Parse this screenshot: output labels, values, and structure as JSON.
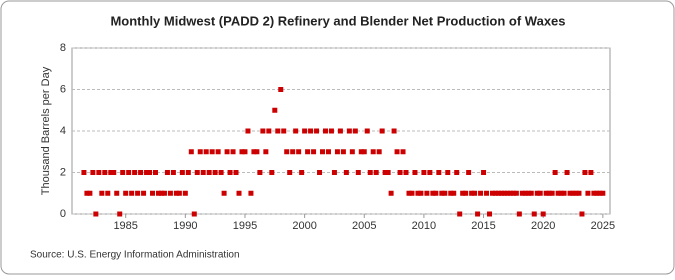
{
  "chart_data": {
    "type": "scatter",
    "title": "Monthly Midwest (PADD 2) Refinery and Blender Net Production of Waxes",
    "y_label": "Thousand Barrels per Day",
    "source": "Source: U.S. Energy Information Administration",
    "color": "#cc0000",
    "xlim": [
      1980.5,
      2025.6
    ],
    "xticks": [
      1985,
      1990,
      1995,
      2000,
      2005,
      2010,
      2015,
      2020,
      2025
    ],
    "ylim": [
      0,
      8
    ],
    "yticks": [
      0,
      2,
      4,
      6,
      8
    ],
    "grid": true,
    "x": [
      1981.5,
      1981.75,
      1982,
      1982.25,
      1982.5,
      1982.75,
      1983,
      1983.25,
      1983.5,
      1983.75,
      1984,
      1984.25,
      1984.5,
      1984.75,
      1985,
      1985.25,
      1985.5,
      1985.75,
      1986,
      1986.25,
      1986.5,
      1986.75,
      1987,
      1987.25,
      1987.5,
      1987.75,
      1988,
      1988.25,
      1988.5,
      1988.75,
      1989,
      1989.25,
      1989.5,
      1989.75,
      1990,
      1990.25,
      1990.5,
      1990.75,
      1991,
      1991.25,
      1991.5,
      1991.75,
      1992,
      1992.25,
      1992.5,
      1992.75,
      1993,
      1993.25,
      1993.5,
      1993.75,
      1994,
      1994.25,
      1994.5,
      1994.75,
      1995,
      1995.25,
      1995.5,
      1995.75,
      1996,
      1996.25,
      1996.5,
      1996.75,
      1997,
      1997.25,
      1997.5,
      1997.75,
      1998,
      1998.25,
      1998.5,
      1998.75,
      1999,
      1999.25,
      1999.5,
      1999.75,
      2000,
      2000.25,
      2000.5,
      2000.75,
      2001,
      2001.25,
      2001.5,
      2001.75,
      2002,
      2002.25,
      2002.5,
      2002.75,
      2003,
      2003.25,
      2003.5,
      2003.75,
      2004,
      2004.25,
      2004.5,
      2004.75,
      2005,
      2005.25,
      2005.5,
      2005.75,
      2006,
      2006.25,
      2006.5,
      2006.75,
      2007,
      2007.25,
      2007.5,
      2007.75,
      2008,
      2008.25,
      2008.5,
      2008.75,
      2009,
      2009.25,
      2009.5,
      2009.75,
      2010,
      2010.25,
      2010.5,
      2010.75,
      2011,
      2011.25,
      2011.5,
      2011.75,
      2012,
      2012.25,
      2012.5,
      2012.75,
      2013,
      2013.25,
      2013.5,
      2013.75,
      2014,
      2014.25,
      2014.5,
      2014.75,
      2015,
      2015.25,
      2015.5,
      2015.75,
      2016,
      2016.25,
      2016.5,
      2016.75,
      2017,
      2017.25,
      2017.5,
      2017.75,
      2018,
      2018.25,
      2018.5,
      2018.75,
      2019,
      2019.25,
      2019.5,
      2019.75,
      2020,
      2020.25,
      2020.5,
      2020.75,
      2021,
      2021.25,
      2021.5,
      2021.75,
      2022,
      2022.25,
      2022.5,
      2022.75,
      2023,
      2023.25,
      2023.5,
      2023.75,
      2024,
      2024.25,
      2024.5,
      2024.75,
      2025
    ],
    "values": [
      2,
      1,
      1,
      2,
      0,
      2,
      1,
      2,
      1,
      2,
      2,
      1,
      0,
      2,
      1,
      2,
      1,
      2,
      1,
      2,
      1,
      2,
      2,
      1,
      2,
      1,
      1,
      1,
      2,
      1,
      2,
      1,
      1,
      2,
      1,
      2,
      3,
      0,
      2,
      3,
      2,
      3,
      2,
      3,
      2,
      3,
      2,
      1,
      3,
      2,
      3,
      2,
      1,
      3,
      3,
      4,
      1,
      3,
      3,
      2,
      4,
      3,
      4,
      2,
      5,
      4,
      6,
      4,
      3,
      2,
      3,
      4,
      3,
      2,
      4,
      3,
      4,
      3,
      4,
      2,
      3,
      4,
      3,
      4,
      2,
      3,
      4,
      3,
      2,
      4,
      3,
      4,
      2,
      3,
      3,
      4,
      2,
      3,
      2,
      3,
      4,
      2,
      2,
      1,
      4,
      3,
      2,
      3,
      2,
      1,
      1,
      2,
      1,
      1,
      2,
      1,
      2,
      1,
      1,
      2,
      1,
      1,
      2,
      1,
      1,
      2,
      0,
      1,
      1,
      2,
      1,
      1,
      0,
      1,
      2,
      1,
      0,
      1,
      1,
      1,
      1,
      1,
      1,
      1,
      1,
      1,
      0,
      1,
      1,
      1,
      1,
      0,
      1,
      1,
      0,
      1,
      1,
      1,
      2,
      1,
      1,
      1,
      2,
      1,
      1,
      1,
      1,
      0,
      2,
      1,
      2,
      1,
      1,
      1,
      1
    ]
  }
}
